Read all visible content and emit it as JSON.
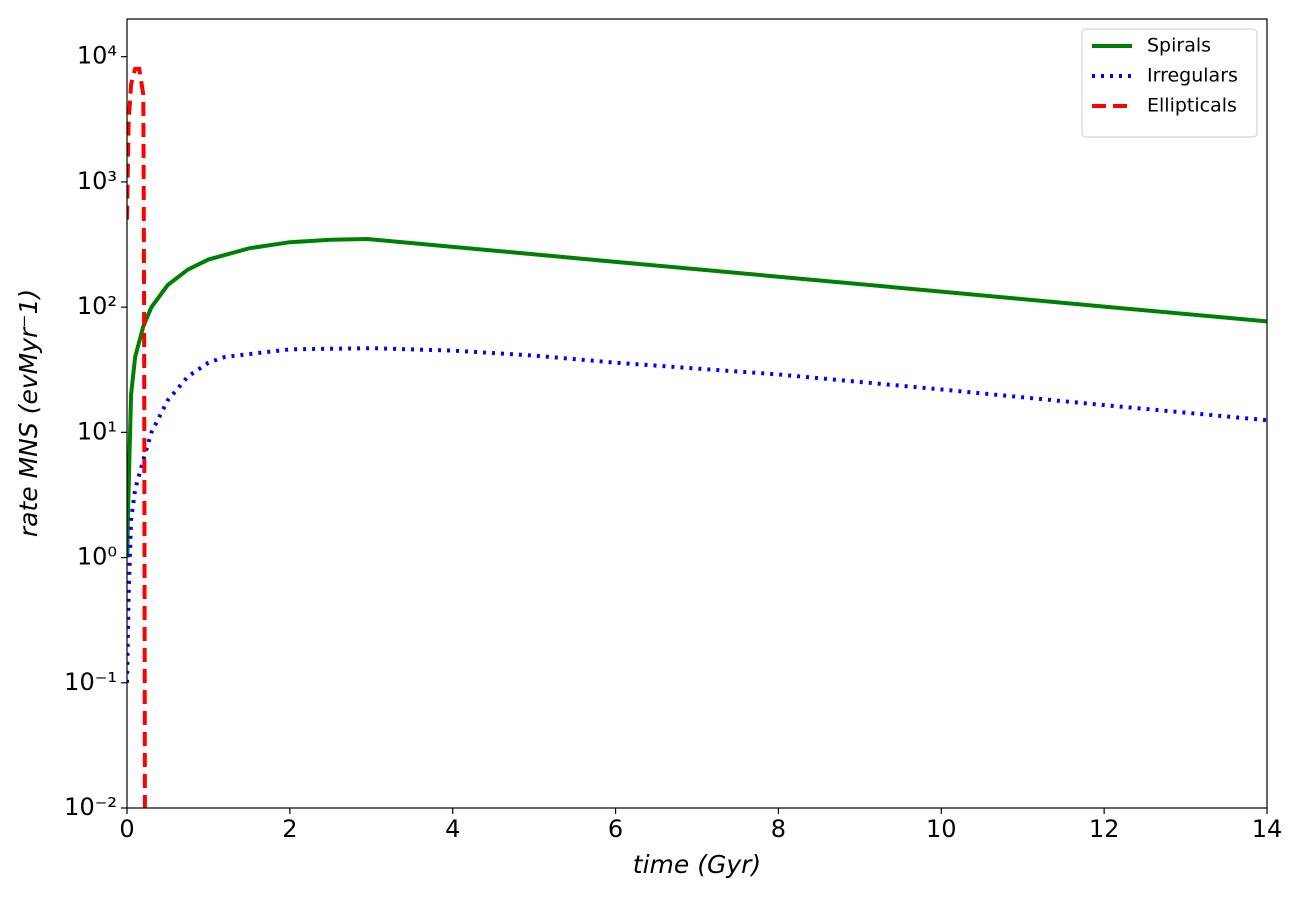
{
  "chart_data": {
    "type": "line",
    "xlabel": "time (Gyr)",
    "ylabel": "rate MNS (evMyr⁻1)",
    "xlim": [
      0,
      14
    ],
    "xticks": [
      0,
      2,
      4,
      6,
      8,
      10,
      12,
      14
    ],
    "ylim": [
      0.01,
      20000
    ],
    "yscale": "log",
    "yticks": [
      {
        "value": 0.01,
        "label": "10⁻²"
      },
      {
        "value": 0.1,
        "label": "10⁻¹"
      },
      {
        "value": 1,
        "label": "10⁰"
      },
      {
        "value": 10,
        "label": "10¹"
      },
      {
        "value": 100,
        "label": "10²"
      },
      {
        "value": 1000,
        "label": "10³"
      },
      {
        "value": 10000,
        "label": "10⁴"
      }
    ],
    "legend": "upper right",
    "series": [
      {
        "name": "Spirals",
        "color": "#008000",
        "linestyle": "solid",
        "x": [
          0.005,
          0.01,
          0.05,
          0.1,
          0.2,
          0.3,
          0.5,
          0.75,
          1,
          1.5,
          2,
          2.5,
          2.95,
          4,
          6,
          8,
          10,
          12,
          14
        ],
        "values": [
          1,
          2,
          20,
          40,
          70,
          100,
          150,
          200,
          240,
          295,
          330,
          345,
          350,
          303,
          230,
          175,
          133,
          101,
          77
        ]
      },
      {
        "name": "Irregulars",
        "color": "#0000ff",
        "linestyle": "dotted",
        "x": [
          0,
          0.02,
          0.05,
          0.1,
          0.2,
          0.3,
          0.5,
          0.75,
          1,
          1.2,
          2,
          3,
          4,
          5,
          6,
          8,
          10,
          12,
          14
        ],
        "values": [
          0.1,
          0.5,
          2,
          3.5,
          6,
          10,
          18,
          28,
          36,
          40,
          46,
          47,
          45,
          41,
          36,
          29,
          22,
          16.5,
          12.5
        ]
      },
      {
        "name": "Ellipticals",
        "color": "#ff0000",
        "linestyle": "dashed",
        "x": [
          0,
          0.02,
          0.05,
          0.1,
          0.15,
          0.2,
          0.205,
          0.21,
          0.215,
          0.22
        ],
        "values": [
          500,
          3000,
          6000,
          8000,
          8000,
          5000,
          1000,
          100,
          1,
          0.01
        ]
      }
    ]
  }
}
